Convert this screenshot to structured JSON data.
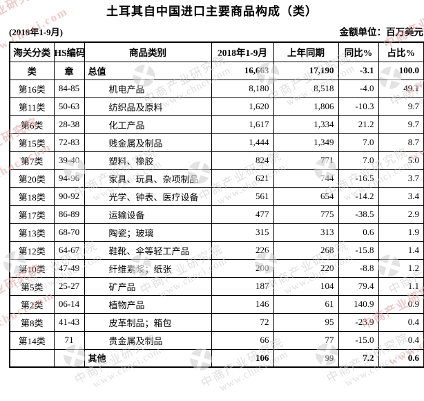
{
  "title": "土耳其自中国进口主要商品构成（类）",
  "period": "(2018年1-9月)",
  "unit_note": "金额单位：百万美元",
  "watermark": {
    "brand": "中商产业研究院",
    "url": "www.chnci.com",
    "logo": "pinwheel-circle-logo",
    "gray_color": "#c6c6c6",
    "pink_color": "#e2a0a0"
  },
  "table": {
    "headers": [
      "海关分类",
      "HS编码",
      "商品类别",
      "2018年1-9月",
      "上年同期",
      "同比%",
      "占比%"
    ],
    "rows": [
      {
        "category": "类",
        "hs_chapter": "章",
        "name": "总值",
        "value_2018": "16,663",
        "value_prev": "17,190",
        "yoy_pct": "-3.1",
        "share_pct": "100.0",
        "bold": true,
        "indent": false
      },
      {
        "category": "第16类",
        "hs_chapter": "84-85",
        "name": "机电产品",
        "value_2018": "8,180",
        "value_prev": "8,518",
        "yoy_pct": "-4.0",
        "share_pct": "49.1",
        "bold": false,
        "indent": true
      },
      {
        "category": "第11类",
        "hs_chapter": "50-63",
        "name": "纺织品及原料",
        "value_2018": "1,620",
        "value_prev": "1,806",
        "yoy_pct": "-10.3",
        "share_pct": "9.7",
        "bold": false,
        "indent": true
      },
      {
        "category": "第6类",
        "hs_chapter": "28-38",
        "name": "化工产品",
        "value_2018": "1,617",
        "value_prev": "1,334",
        "yoy_pct": "21.2",
        "share_pct": "9.7",
        "bold": false,
        "indent": true
      },
      {
        "category": "第15类",
        "hs_chapter": "72-83",
        "name": "贱金属及制品",
        "value_2018": "1,444",
        "value_prev": "1,349",
        "yoy_pct": "7.0",
        "share_pct": "8.7",
        "bold": false,
        "indent": true
      },
      {
        "category": "第7类",
        "hs_chapter": "39-40",
        "name": "塑料、橡胶",
        "value_2018": "824",
        "value_prev": "771",
        "yoy_pct": "7.0",
        "share_pct": "5.0",
        "bold": false,
        "indent": true
      },
      {
        "category": "第20类",
        "hs_chapter": "94-96",
        "name": "家具、玩具、杂项制品",
        "value_2018": "621",
        "value_prev": "744",
        "yoy_pct": "-16.5",
        "share_pct": "3.7",
        "bold": false,
        "indent": true
      },
      {
        "category": "第18类",
        "hs_chapter": "90-92",
        "name": "光学、钟表、医疗设备",
        "value_2018": "561",
        "value_prev": "654",
        "yoy_pct": "-14.2",
        "share_pct": "3.4",
        "bold": false,
        "indent": true
      },
      {
        "category": "第17类",
        "hs_chapter": "86-89",
        "name": "运输设备",
        "value_2018": "477",
        "value_prev": "775",
        "yoy_pct": "-38.5",
        "share_pct": "2.9",
        "bold": false,
        "indent": true
      },
      {
        "category": "第13类",
        "hs_chapter": "68-70",
        "name": "陶瓷；玻璃",
        "value_2018": "315",
        "value_prev": "313",
        "yoy_pct": "0.6",
        "share_pct": "1.9",
        "bold": false,
        "indent": true
      },
      {
        "category": "第12类",
        "hs_chapter": "64-67",
        "name": "鞋靴、伞等轻工产品",
        "value_2018": "226",
        "value_prev": "268",
        "yoy_pct": "-15.8",
        "share_pct": "1.4",
        "bold": false,
        "indent": true
      },
      {
        "category": "第10类",
        "hs_chapter": "47-49",
        "name": "纤维素浆；纸张",
        "value_2018": "200",
        "value_prev": "220",
        "yoy_pct": "-8.8",
        "share_pct": "1.2",
        "bold": false,
        "indent": true
      },
      {
        "category": "第5类",
        "hs_chapter": "25-27",
        "name": "矿产品",
        "value_2018": "187",
        "value_prev": "104",
        "yoy_pct": "79.4",
        "share_pct": "1.1",
        "bold": false,
        "indent": true
      },
      {
        "category": "第2类",
        "hs_chapter": "06-14",
        "name": "植物产品",
        "value_2018": "146",
        "value_prev": "61",
        "yoy_pct": "140.9",
        "share_pct": "0.9",
        "bold": false,
        "indent": true
      },
      {
        "category": "第8类",
        "hs_chapter": "41-43",
        "name": "皮革制品；箱包",
        "value_2018": "72",
        "value_prev": "95",
        "yoy_pct": "-23.9",
        "share_pct": "0.4",
        "bold": false,
        "indent": true
      },
      {
        "category": "第14类",
        "hs_chapter": "71",
        "name": "贵金属及制品",
        "value_2018": "66",
        "value_prev": "77",
        "yoy_pct": "-15.0",
        "share_pct": "0.4",
        "bold": false,
        "indent": true
      },
      {
        "category": "",
        "hs_chapter": "",
        "name": "其他",
        "value_2018": "106",
        "value_prev": "99",
        "yoy_pct": "7.2",
        "share_pct": "0.6",
        "bold": true,
        "indent": false
      }
    ]
  }
}
